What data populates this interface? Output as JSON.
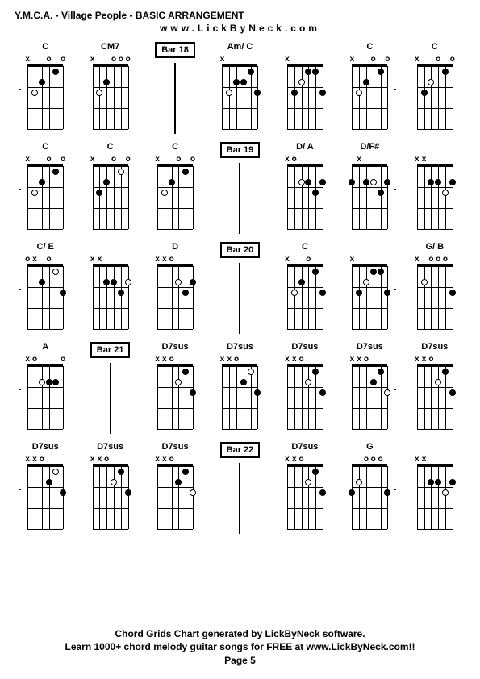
{
  "title": "Y.M.C.A. - Village People - BASIC ARRANGEMENT",
  "subtitle": "www.LickByNeck.com",
  "footer_line1": "Chord Grids Chart generated by LickByNeck software.",
  "footer_line2": "Learn 1000+ chord melody guitar songs for FREE at www.LickByNeck.com!!",
  "footer_line3": "Page 5",
  "layout": {
    "strings": 6,
    "frets": 6,
    "string_spacing": 8.8,
    "fret_spacing": 13,
    "colors": {
      "bg": "#ffffff",
      "line": "#000000",
      "dot": "#000000"
    }
  },
  "rows": [
    [
      {
        "type": "chord",
        "name": "C",
        "markers": [
          "x",
          "",
          "",
          "o",
          "",
          "o"
        ],
        "dots": [
          [
            2,
            3,
            "o"
          ],
          [
            3,
            2
          ],
          [
            5,
            1
          ]
        ],
        "dash": "l"
      },
      {
        "type": "chord",
        "name": "CM7",
        "markers": [
          "x",
          "",
          "",
          "o",
          "o",
          "o"
        ],
        "dots": [
          [
            2,
            3,
            "o"
          ],
          [
            3,
            2
          ]
        ]
      },
      {
        "type": "bar",
        "label": "Bar 18"
      },
      {
        "type": "chord",
        "name": "Am/ C",
        "markers": [
          "x",
          "",
          "",
          "",
          "",
          ""
        ],
        "dots": [
          [
            2,
            3,
            "o"
          ],
          [
            3,
            2
          ],
          [
            4,
            2
          ],
          [
            5,
            1
          ],
          [
            6,
            3
          ]
        ]
      },
      {
        "type": "chord",
        "name": "",
        "markers": [
          "x",
          "",
          "",
          "",
          "",
          ""
        ],
        "dots": [
          [
            2,
            3
          ],
          [
            3,
            2,
            "o"
          ],
          [
            4,
            1
          ],
          [
            5,
            1
          ],
          [
            6,
            3
          ]
        ]
      },
      {
        "type": "chord",
        "name": "C",
        "markers": [
          "x",
          "",
          "",
          "o",
          "",
          "o"
        ],
        "dots": [
          [
            2,
            3,
            "o"
          ],
          [
            3,
            2
          ],
          [
            5,
            1
          ]
        ],
        "dash": "r"
      },
      {
        "type": "chord",
        "name": "C",
        "markers": [
          "x",
          "",
          "",
          "o",
          "",
          "o"
        ],
        "dots": [
          [
            2,
            3
          ],
          [
            3,
            2,
            "o"
          ],
          [
            5,
            1
          ]
        ]
      }
    ],
    [
      {
        "type": "chord",
        "name": "C",
        "markers": [
          "x",
          "",
          "",
          "o",
          "",
          "o"
        ],
        "dots": [
          [
            2,
            3,
            "o"
          ],
          [
            3,
            2
          ],
          [
            5,
            1
          ]
        ],
        "dash": "l"
      },
      {
        "type": "chord",
        "name": "C",
        "markers": [
          "x",
          "",
          "",
          "o",
          "",
          "o"
        ],
        "dots": [
          [
            2,
            3
          ],
          [
            3,
            2
          ],
          [
            5,
            1,
            "o"
          ]
        ]
      },
      {
        "type": "chord",
        "name": "C",
        "markers": [
          "x",
          "",
          "",
          "o",
          "",
          "o"
        ],
        "dots": [
          [
            2,
            3,
            "o"
          ],
          [
            3,
            2
          ],
          [
            5,
            1
          ]
        ]
      },
      {
        "type": "bar",
        "label": "Bar 19"
      },
      {
        "type": "chord",
        "name": "D/ A",
        "markers": [
          "x",
          "o",
          "",
          "",
          "",
          ""
        ],
        "dots": [
          [
            3,
            2,
            "o"
          ],
          [
            4,
            2
          ],
          [
            5,
            3
          ],
          [
            6,
            2
          ]
        ]
      },
      {
        "type": "chord",
        "name": "D/F#",
        "markers": [
          "",
          "x",
          "",
          "",
          "",
          ""
        ],
        "dots": [
          [
            1,
            2
          ],
          [
            3,
            2
          ],
          [
            4,
            2,
            "o"
          ],
          [
            5,
            3
          ],
          [
            6,
            2
          ]
        ],
        "dash": "r"
      },
      {
        "type": "chord",
        "name": "",
        "markers": [
          "x",
          "x",
          "",
          "",
          "",
          ""
        ],
        "dots": [
          [
            3,
            2
          ],
          [
            4,
            2
          ],
          [
            5,
            3,
            "o"
          ],
          [
            6,
            2
          ]
        ]
      }
    ],
    [
      {
        "type": "chord",
        "name": "C/ E",
        "markers": [
          "o",
          "x",
          "",
          "o",
          "",
          ""
        ],
        "dots": [
          [
            3,
            2
          ],
          [
            5,
            1,
            "o"
          ],
          [
            6,
            3
          ]
        ],
        "dash": "l"
      },
      {
        "type": "chord",
        "name": "",
        "markers": [
          "x",
          "x",
          "",
          "",
          "",
          ""
        ],
        "dots": [
          [
            3,
            2
          ],
          [
            4,
            2
          ],
          [
            5,
            3
          ],
          [
            6,
            2,
            "o"
          ]
        ]
      },
      {
        "type": "chord",
        "name": "D",
        "markers": [
          "x",
          "x",
          "o",
          "",
          "",
          ""
        ],
        "dots": [
          [
            4,
            2,
            "o"
          ],
          [
            5,
            3
          ],
          [
            6,
            2
          ]
        ]
      },
      {
        "type": "bar",
        "label": "Bar 20"
      },
      {
        "type": "chord",
        "name": "C",
        "markers": [
          "x",
          "",
          "",
          "o",
          "",
          ""
        ],
        "dots": [
          [
            2,
            3,
            "o"
          ],
          [
            3,
            2
          ],
          [
            5,
            1
          ],
          [
            6,
            3
          ]
        ]
      },
      {
        "type": "chord",
        "name": "",
        "markers": [
          "x",
          "",
          "",
          "",
          "",
          ""
        ],
        "dots": [
          [
            2,
            3
          ],
          [
            3,
            2,
            "o"
          ],
          [
            4,
            1
          ],
          [
            5,
            1
          ],
          [
            6,
            3
          ]
        ],
        "dash": "r"
      },
      {
        "type": "chord",
        "name": "G/ B",
        "markers": [
          "x",
          "",
          "o",
          "o",
          "o",
          ""
        ],
        "dots": [
          [
            2,
            2,
            "o"
          ],
          [
            6,
            3
          ]
        ]
      }
    ],
    [
      {
        "type": "chord",
        "name": "A",
        "markers": [
          "x",
          "o",
          "",
          "",
          "",
          "o"
        ],
        "dots": [
          [
            3,
            2,
            "o"
          ],
          [
            4,
            2
          ],
          [
            5,
            2
          ]
        ],
        "dash": "l"
      },
      {
        "type": "bar",
        "label": "Bar 21"
      },
      {
        "type": "chord",
        "name": "D7sus",
        "markers": [
          "x",
          "x",
          "o",
          "",
          "",
          ""
        ],
        "dots": [
          [
            4,
            2,
            "o"
          ],
          [
            5,
            1
          ],
          [
            6,
            3
          ]
        ]
      },
      {
        "type": "chord",
        "name": "D7sus",
        "markers": [
          "x",
          "x",
          "o",
          "",
          "",
          ""
        ],
        "dots": [
          [
            4,
            2
          ],
          [
            5,
            1,
            "o"
          ],
          [
            6,
            3
          ]
        ]
      },
      {
        "type": "chord",
        "name": "D7sus",
        "markers": [
          "x",
          "x",
          "o",
          "",
          "",
          ""
        ],
        "dots": [
          [
            4,
            2,
            "o"
          ],
          [
            5,
            1
          ],
          [
            6,
            3
          ]
        ]
      },
      {
        "type": "chord",
        "name": "D7sus",
        "markers": [
          "x",
          "x",
          "o",
          "",
          "",
          ""
        ],
        "dots": [
          [
            4,
            2
          ],
          [
            5,
            1
          ],
          [
            6,
            3,
            "o"
          ]
        ],
        "dash": "r"
      },
      {
        "type": "chord",
        "name": "D7sus",
        "markers": [
          "x",
          "x",
          "o",
          "",
          "",
          ""
        ],
        "dots": [
          [
            4,
            2,
            "o"
          ],
          [
            5,
            1
          ],
          [
            6,
            3
          ]
        ]
      }
    ],
    [
      {
        "type": "chord",
        "name": "D7sus",
        "markers": [
          "x",
          "x",
          "o",
          "",
          "",
          ""
        ],
        "dots": [
          [
            4,
            2
          ],
          [
            5,
            1,
            "o"
          ],
          [
            6,
            3
          ]
        ],
        "dash": "l"
      },
      {
        "type": "chord",
        "name": "D7sus",
        "markers": [
          "x",
          "x",
          "o",
          "",
          "",
          ""
        ],
        "dots": [
          [
            4,
            2,
            "o"
          ],
          [
            5,
            1
          ],
          [
            6,
            3
          ]
        ]
      },
      {
        "type": "chord",
        "name": "D7sus",
        "markers": [
          "x",
          "x",
          "o",
          "",
          "",
          ""
        ],
        "dots": [
          [
            4,
            2
          ],
          [
            5,
            1
          ],
          [
            6,
            3,
            "o"
          ]
        ]
      },
      {
        "type": "bar",
        "label": "Bar 22"
      },
      {
        "type": "chord",
        "name": "D7sus",
        "markers": [
          "x",
          "x",
          "o",
          "",
          "",
          ""
        ],
        "dots": [
          [
            4,
            2,
            "o"
          ],
          [
            5,
            1
          ],
          [
            6,
            3
          ]
        ]
      },
      {
        "type": "chord",
        "name": "G",
        "markers": [
          "",
          "",
          "o",
          "o",
          "o",
          ""
        ],
        "dots": [
          [
            1,
            3
          ],
          [
            2,
            2,
            "o"
          ],
          [
            6,
            3
          ]
        ],
        "dash": "r"
      },
      {
        "type": "chord",
        "name": "",
        "markers": [
          "x",
          "x",
          "",
          "",
          "",
          ""
        ],
        "dots": [
          [
            3,
            2
          ],
          [
            4,
            2
          ],
          [
            5,
            3,
            "o"
          ],
          [
            6,
            2
          ]
        ]
      }
    ]
  ]
}
